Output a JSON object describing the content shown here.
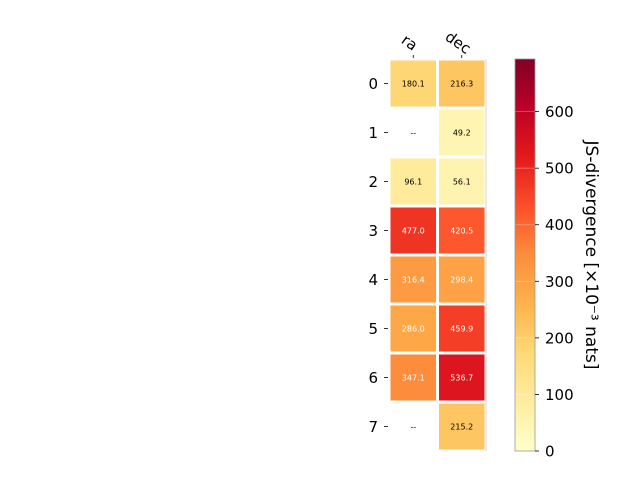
{
  "chart_data": {
    "type": "heatmap",
    "columns": [
      "ra",
      "dec"
    ],
    "rows": [
      "0",
      "1",
      "2",
      "3",
      "4",
      "5",
      "6",
      "7"
    ],
    "values": [
      [
        180.1,
        216.3
      ],
      [
        null,
        49.2
      ],
      [
        96.1,
        56.1
      ],
      [
        477.0,
        420.5
      ],
      [
        316.4,
        298.4
      ],
      [
        286.0,
        459.9
      ],
      [
        347.1,
        536.7
      ],
      [
        null,
        215.2
      ]
    ],
    "cell_text": [
      [
        "180.1",
        "216.3"
      ],
      [
        "--",
        "49.2"
      ],
      [
        "96.1",
        "56.1"
      ],
      [
        "477.0",
        "420.5"
      ],
      [
        "316.4",
        "298.4"
      ],
      [
        "286.0",
        "459.9"
      ],
      [
        "347.1",
        "536.7"
      ],
      [
        "--",
        "215.2"
      ]
    ],
    "colormap": "YlOrRd",
    "colorbar": {
      "label": "JS-divergence [×10⁻³ nats]",
      "vmin": 0,
      "vmax": 693,
      "ticks": [
        0,
        100,
        200,
        300,
        400,
        500,
        600
      ],
      "tick_labels": [
        "0",
        "100",
        "200",
        "300",
        "400",
        "500",
        "600"
      ]
    },
    "missing_color": "#ffffff",
    "text_color_dark": "#000000",
    "text_color_light": "#ffffff"
  }
}
